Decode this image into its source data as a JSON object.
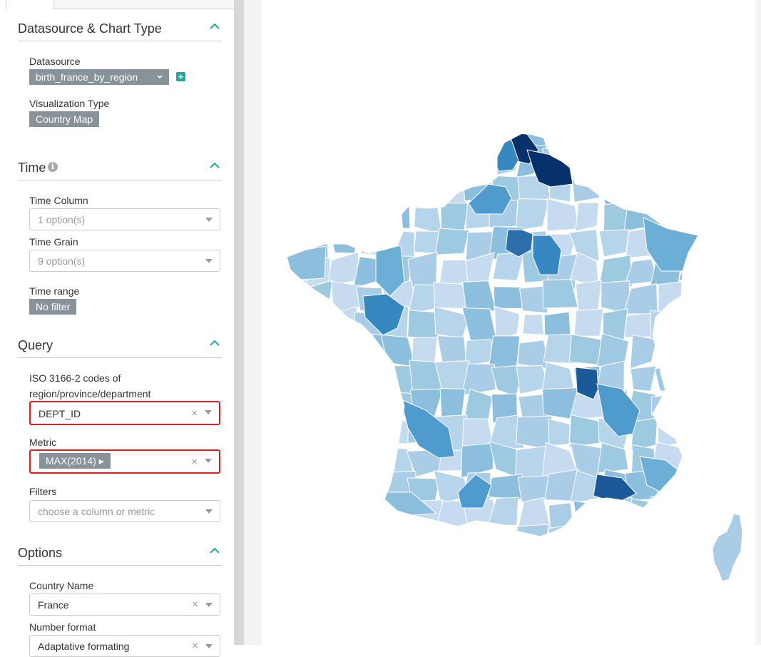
{
  "sections": {
    "datasource": {
      "title": "Datasource & Chart Type",
      "datasource_label": "Datasource",
      "datasource_value": "birth_france_by_region",
      "viz_label": "Visualization Type",
      "viz_value": "Country Map"
    },
    "time": {
      "title": "Time",
      "time_column_label": "Time Column",
      "time_column_placeholder": "1 option(s)",
      "time_grain_label": "Time Grain",
      "time_grain_placeholder": "9 option(s)",
      "time_range_label": "Time range",
      "time_range_value": "No filter"
    },
    "query": {
      "title": "Query",
      "iso_label_line1": "ISO 3166-2 codes of",
      "iso_label_line2": "region/province/department",
      "iso_value": "DEPT_ID",
      "metric_label": "Metric",
      "metric_value": "MAX(2014) ▸",
      "filters_label": "Filters",
      "filters_placeholder": "choose a column or metric"
    },
    "options": {
      "title": "Options",
      "country_label": "Country Name",
      "country_value": "France",
      "number_format_label": "Number format",
      "number_format_value": "Adaptative formating"
    }
  },
  "icons": {
    "clear": "×",
    "add": "+",
    "info": "i"
  },
  "colors": {
    "accent": "#20a7a0",
    "pill": "#879399",
    "highlight_border": "#e01c1c",
    "map_light": "#c6dbef",
    "map_dark": "#08306b"
  }
}
